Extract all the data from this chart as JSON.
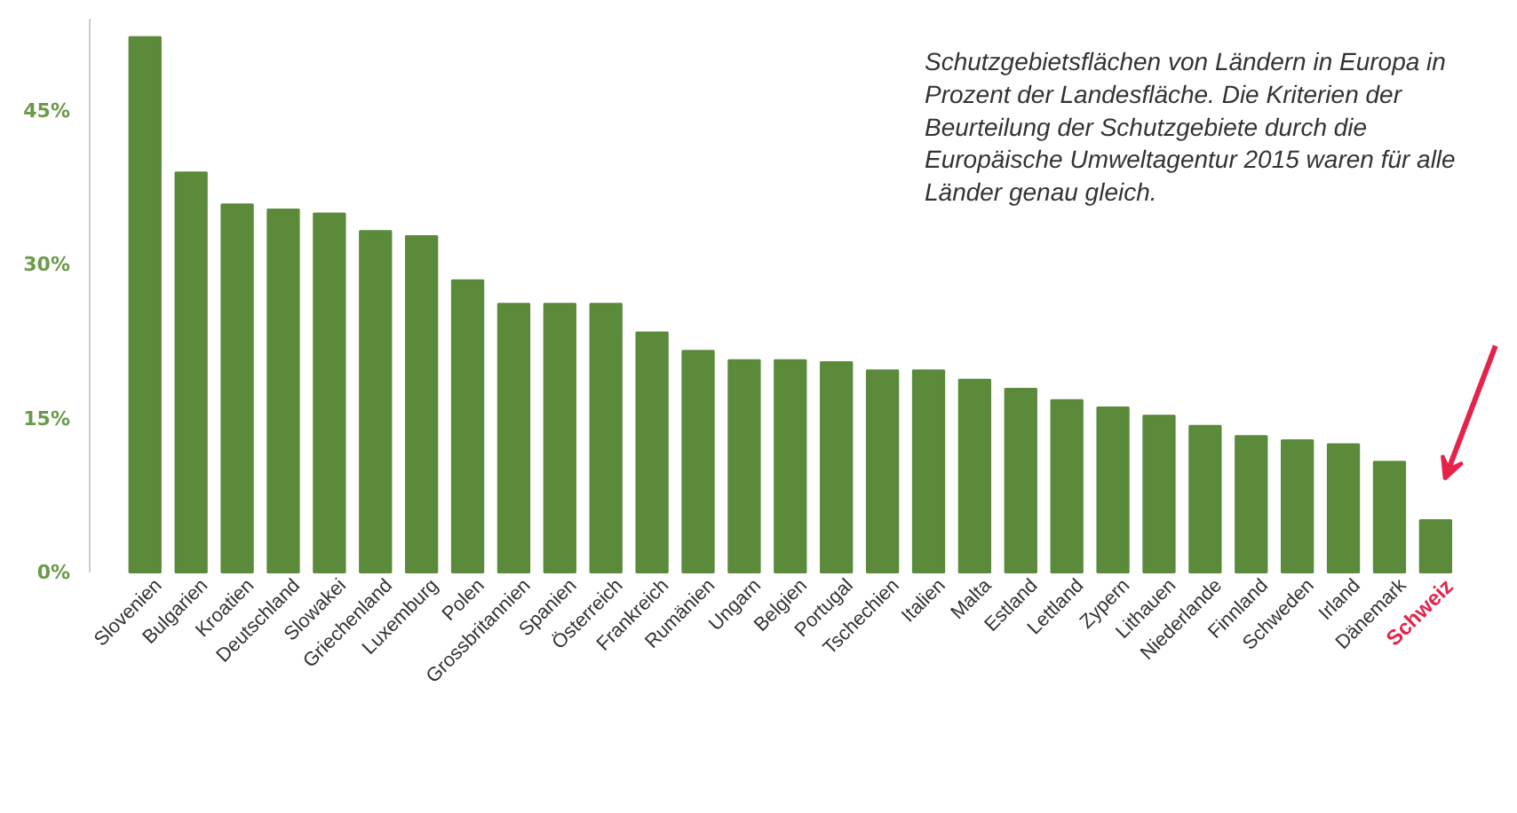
{
  "chart_data": {
    "type": "bar",
    "title": "Schutzgebietsflächen von Ländern in Europa in Prozent der Landesfläche. Die Kriterien der Beurteilung der Schutzgebiete durch die Europäische Umweltagentur 2015 waren für alle Länder genau gleich.",
    "categories": [
      "Slovenien",
      "Bulgarien",
      "Kroatien",
      "Deutschland",
      "Slowakei",
      "Griechenland",
      "Luxemburg",
      "Polen",
      "Grossbritannien",
      "Spanien",
      "Österreich",
      "Frankreich",
      "Rumänien",
      "Ungarn",
      "Belgien",
      "Portugal",
      "Tschechien",
      "Italien",
      "Malta",
      "Estland",
      "Lettland",
      "Zypern",
      "Lithauen",
      "Niederlande",
      "Finnland",
      "Schweden",
      "Irland",
      "Dänemark",
      "Schweiz"
    ],
    "values": [
      52.2,
      39.0,
      35.9,
      35.4,
      35.0,
      33.3,
      32.8,
      28.5,
      26.2,
      26.2,
      26.2,
      23.4,
      21.6,
      20.7,
      20.7,
      20.5,
      19.7,
      19.7,
      18.8,
      17.9,
      16.8,
      16.1,
      15.3,
      14.3,
      13.3,
      12.9,
      12.5,
      10.8,
      5.1
    ],
    "color": "#5a8a3a",
    "ylim": [
      0,
      54
    ],
    "yticks": [
      {
        "value": 0,
        "label": "0%"
      },
      {
        "value": 15,
        "label": "15%"
      },
      {
        "value": 30,
        "label": "30%"
      },
      {
        "value": 45,
        "label": "45%"
      }
    ],
    "grid": false
  }
}
